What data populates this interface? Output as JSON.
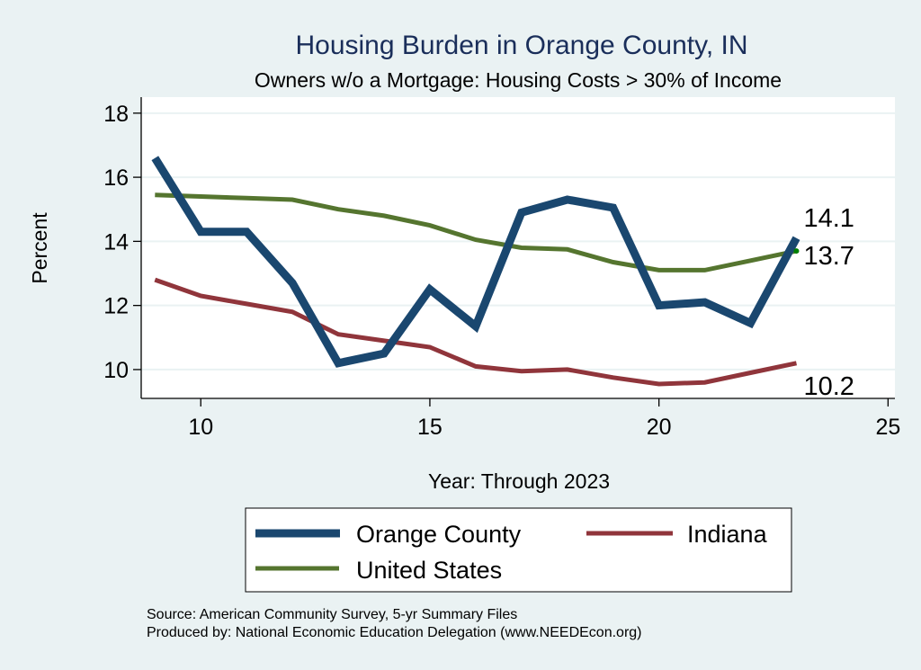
{
  "chart_data": {
    "type": "line",
    "title": "Housing Burden in Orange County, IN",
    "subtitle": "Owners w/o a Mortgage: Housing Costs > 30% of Income",
    "xlabel": "Year: Through 2023",
    "ylabel": "Percent",
    "xlim": [
      8.7,
      25.15
    ],
    "ylim": [
      9.1,
      18.5
    ],
    "xticks": [
      10,
      15,
      20,
      25
    ],
    "yticks": [
      10,
      12,
      14,
      16,
      18
    ],
    "grid": "horizontal",
    "legend_position": "bottom",
    "x": [
      9,
      10,
      11,
      12,
      13,
      14,
      15,
      16,
      17,
      18,
      19,
      20,
      21,
      22,
      23
    ],
    "series": [
      {
        "name": "Orange County",
        "color": "#1a476f",
        "values": [
          16.6,
          14.3,
          14.3,
          12.7,
          10.2,
          10.5,
          12.5,
          11.35,
          14.9,
          15.3,
          15.05,
          12.0,
          12.1,
          11.45,
          14.1
        ],
        "end_label": "14.1"
      },
      {
        "name": "Indiana",
        "color": "#90353b",
        "values": [
          12.8,
          12.3,
          12.05,
          11.8,
          11.1,
          10.9,
          10.7,
          10.1,
          9.95,
          10.0,
          9.75,
          9.55,
          9.6,
          9.9,
          10.2
        ],
        "end_label": "10.2"
      },
      {
        "name": "United States",
        "color": "#55752f",
        "values": [
          15.45,
          15.4,
          15.35,
          15.3,
          15.0,
          14.8,
          14.5,
          14.05,
          13.8,
          13.75,
          13.35,
          13.1,
          13.1,
          13.4,
          13.7
        ],
        "end_label": "13.7"
      }
    ],
    "legend": [
      "Orange County",
      "Indiana",
      "United States"
    ],
    "footer": [
      "Source: American Community Survey, 5-yr Summary Files",
      "Produced by: National Economic Education Delegation (www.NEEDEcon.org)"
    ]
  }
}
